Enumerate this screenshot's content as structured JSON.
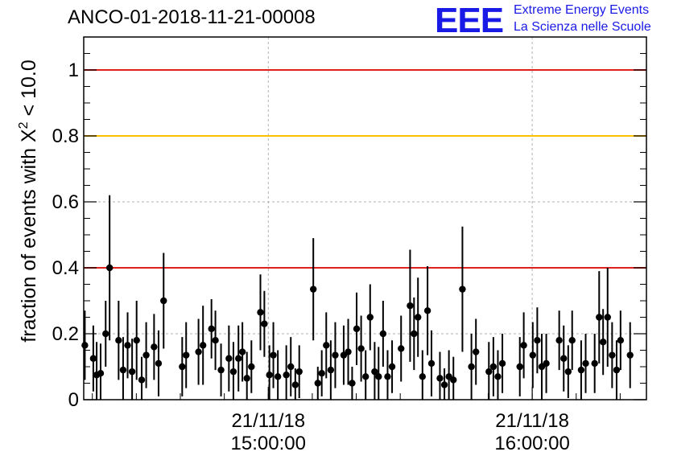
{
  "title": "ANCO-01-2018-11-21-00008",
  "logo": {
    "mark": "EEE",
    "line1": "Extreme Energy Events",
    "line2": "La Scienza nelle Scuole",
    "color": "#1a1ae6"
  },
  "chart_data": {
    "type": "scatter",
    "title": "ANCO-01-2018-11-21-00008",
    "ylabel_prefix": "fraction of events with X",
    "ylabel_sup": "2",
    "ylabel_suffix": " < 10.0",
    "xlabel": "",
    "ylim": [
      0,
      1.1
    ],
    "y_ticks": [
      0,
      0.2,
      0.4,
      0.6,
      0.8,
      1
    ],
    "y_tick_labels": [
      "0",
      "0.2",
      "0.4",
      "0.6",
      "0.8",
      "1"
    ],
    "x_ticks": [
      {
        "t": 0.328,
        "date": "21/11/18",
        "time": "15:00:00"
      },
      {
        "t": 0.797,
        "date": "21/11/18",
        "time": "16:00:00"
      }
    ],
    "grid": true,
    "hlines": [
      {
        "y": 1.0,
        "color": "#e0201a"
      },
      {
        "y": 0.8,
        "color": "#ffc000"
      },
      {
        "y": 0.4,
        "color": "#e0201a"
      }
    ],
    "series": [
      {
        "marker_color": "#000000",
        "points": [
          [
            0.002,
            0.165,
            0.105
          ],
          [
            0.017,
            0.125,
            0.1
          ],
          [
            0.023,
            0.075,
            0.1
          ],
          [
            0.03,
            0.08,
            0.09
          ],
          [
            0.039,
            0.2,
            0.1
          ],
          [
            0.046,
            0.4,
            0.22
          ],
          [
            0.062,
            0.18,
            0.12
          ],
          [
            0.07,
            0.09,
            0.1
          ],
          [
            0.078,
            0.165,
            0.1
          ],
          [
            0.086,
            0.085,
            0.1
          ],
          [
            0.094,
            0.18,
            0.12
          ],
          [
            0.103,
            0.06,
            0.07
          ],
          [
            0.111,
            0.135,
            0.1
          ],
          [
            0.125,
            0.16,
            0.1
          ],
          [
            0.133,
            0.11,
            0.1
          ],
          [
            0.142,
            0.3,
            0.145
          ],
          [
            0.175,
            0.1,
            0.09
          ],
          [
            0.182,
            0.135,
            0.1
          ],
          [
            0.204,
            0.145,
            0.1
          ],
          [
            0.212,
            0.165,
            0.12
          ],
          [
            0.227,
            0.215,
            0.09
          ],
          [
            0.234,
            0.18,
            0.09
          ],
          [
            0.244,
            0.09,
            0.08
          ],
          [
            0.258,
            0.125,
            0.1
          ],
          [
            0.266,
            0.085,
            0.09
          ],
          [
            0.275,
            0.125,
            0.1
          ],
          [
            0.282,
            0.145,
            0.09
          ],
          [
            0.29,
            0.065,
            0.08
          ],
          [
            0.298,
            0.1,
            0.08
          ],
          [
            0.314,
            0.265,
            0.115
          ],
          [
            0.321,
            0.23,
            0.1
          ],
          [
            0.33,
            0.075,
            0.09
          ],
          [
            0.337,
            0.135,
            0.1
          ],
          [
            0.345,
            0.07,
            0.08
          ],
          [
            0.36,
            0.075,
            0.09
          ],
          [
            0.368,
            0.1,
            0.09
          ],
          [
            0.376,
            0.045,
            0.05
          ],
          [
            0.383,
            0.085,
            0.08
          ],
          [
            0.408,
            0.335,
            0.155
          ],
          [
            0.416,
            0.05,
            0.05
          ],
          [
            0.423,
            0.08,
            0.07
          ],
          [
            0.431,
            0.165,
            0.1
          ],
          [
            0.439,
            0.09,
            0.09
          ],
          [
            0.447,
            0.135,
            0.1
          ],
          [
            0.462,
            0.135,
            0.09
          ],
          [
            0.47,
            0.145,
            0.1
          ],
          [
            0.477,
            0.05,
            0.05
          ],
          [
            0.485,
            0.215,
            0.11
          ],
          [
            0.493,
            0.155,
            0.1
          ],
          [
            0.501,
            0.07,
            0.08
          ],
          [
            0.509,
            0.25,
            0.1
          ],
          [
            0.517,
            0.085,
            0.09
          ],
          [
            0.524,
            0.07,
            0.09
          ],
          [
            0.532,
            0.2,
            0.1
          ],
          [
            0.54,
            0.07,
            0.08
          ],
          [
            0.548,
            0.1,
            0.08
          ],
          [
            0.564,
            0.155,
            0.1
          ],
          [
            0.58,
            0.285,
            0.17
          ],
          [
            0.587,
            0.2,
            0.11
          ],
          [
            0.594,
            0.25,
            0.12
          ],
          [
            0.602,
            0.07,
            0.08
          ],
          [
            0.611,
            0.27,
            0.135
          ],
          [
            0.618,
            0.11,
            0.1
          ],
          [
            0.633,
            0.065,
            0.08
          ],
          [
            0.641,
            0.045,
            0.05
          ],
          [
            0.649,
            0.07,
            0.08
          ],
          [
            0.657,
            0.06,
            0.07
          ],
          [
            0.673,
            0.335,
            0.19
          ],
          [
            0.689,
            0.1,
            0.1
          ],
          [
            0.697,
            0.145,
            0.1
          ],
          [
            0.72,
            0.085,
            0.09
          ],
          [
            0.728,
            0.1,
            0.09
          ],
          [
            0.736,
            0.07,
            0.08
          ],
          [
            0.744,
            0.11,
            0.09
          ],
          [
            0.775,
            0.1,
            0.09
          ],
          [
            0.782,
            0.165,
            0.1
          ],
          [
            0.798,
            0.135,
            0.1
          ],
          [
            0.806,
            0.18,
            0.1
          ],
          [
            0.814,
            0.1,
            0.1
          ],
          [
            0.822,
            0.11,
            0.09
          ],
          [
            0.845,
            0.18,
            0.09
          ],
          [
            0.853,
            0.125,
            0.1
          ],
          [
            0.861,
            0.085,
            0.08
          ],
          [
            0.868,
            0.18,
            0.09
          ],
          [
            0.884,
            0.09,
            0.09
          ],
          [
            0.892,
            0.11,
            0.09
          ],
          [
            0.908,
            0.11,
            0.09
          ],
          [
            0.916,
            0.25,
            0.14
          ],
          [
            0.923,
            0.175,
            0.1
          ],
          [
            0.931,
            0.25,
            0.15
          ],
          [
            0.939,
            0.135,
            0.1
          ],
          [
            0.947,
            0.09,
            0.09
          ],
          [
            0.954,
            0.18,
            0.09
          ],
          [
            0.971,
            0.135,
            0.1
          ]
        ]
      }
    ]
  }
}
